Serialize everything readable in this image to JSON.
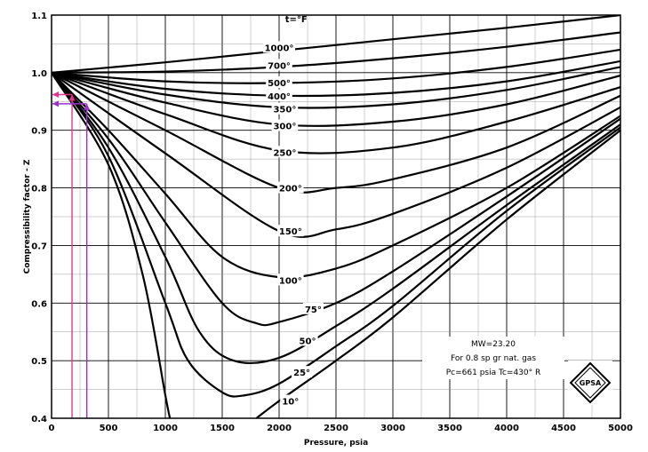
{
  "chart_data": {
    "type": "line",
    "title": "",
    "xlabel": "Pressure, psia",
    "ylabel": "Compressibility factor - Z",
    "xlim": [
      0,
      5000
    ],
    "ylim": [
      0.4,
      1.1
    ],
    "x_ticks": [
      0,
      500,
      1000,
      1500,
      2000,
      2500,
      3000,
      3500,
      4000,
      4500,
      5000
    ],
    "x_tick_labels": [
      "0",
      "500",
      "1000",
      "1500",
      "2000",
      "2500",
      "3000",
      "3500",
      "4000",
      "4500",
      "5000"
    ],
    "y_ticks": [
      0.4,
      0.5,
      0.6,
      0.7,
      0.8,
      0.9,
      1.0,
      1.1
    ],
    "y_tick_labels": [
      "0.4",
      "0.5",
      "0.6",
      "0.7",
      "0.8",
      "0.9",
      "1.0",
      "1.1"
    ],
    "grid": true,
    "temperature_unit_label": "t=°F",
    "series": [
      {
        "name": "1000°",
        "label_at": [
          2000,
          1.044
        ],
        "points": [
          [
            0,
            1.0
          ],
          [
            1000,
            1.018
          ],
          [
            2000,
            1.038
          ],
          [
            3000,
            1.058
          ],
          [
            4000,
            1.078
          ],
          [
            5000,
            1.1
          ]
        ]
      },
      {
        "name": "700°",
        "label_at": [
          2000,
          1.013
        ],
        "points": [
          [
            0,
            1.0
          ],
          [
            1000,
            1.002
          ],
          [
            2000,
            1.01
          ],
          [
            3000,
            1.025
          ],
          [
            4000,
            1.045
          ],
          [
            5000,
            1.07
          ]
        ]
      },
      {
        "name": "500°",
        "label_at": [
          2000,
          0.983
        ],
        "points": [
          [
            0,
            1.0
          ],
          [
            1000,
            0.985
          ],
          [
            2000,
            0.982
          ],
          [
            3000,
            0.99
          ],
          [
            4000,
            1.01
          ],
          [
            5000,
            1.04
          ]
        ]
      },
      {
        "name": "400°",
        "label_at": [
          2000,
          0.96
        ],
        "points": [
          [
            0,
            1.0
          ],
          [
            1000,
            0.972
          ],
          [
            2000,
            0.96
          ],
          [
            3000,
            0.965
          ],
          [
            4000,
            0.985
          ],
          [
            5000,
            1.02
          ]
        ]
      },
      {
        "name": "350°",
        "label_at": [
          2050,
          0.937
        ],
        "points": [
          [
            0,
            1.0
          ],
          [
            1000,
            0.962
          ],
          [
            2000,
            0.94
          ],
          [
            3000,
            0.945
          ],
          [
            4000,
            0.97
          ],
          [
            5000,
            1.01
          ]
        ]
      },
      {
        "name": "300°",
        "label_at": [
          2050,
          0.908
        ],
        "points": [
          [
            0,
            1.0
          ],
          [
            1000,
            0.948
          ],
          [
            2000,
            0.91
          ],
          [
            3000,
            0.915
          ],
          [
            4000,
            0.945
          ],
          [
            5000,
            0.995
          ]
        ]
      },
      {
        "name": "250°",
        "label_at": [
          2050,
          0.862
        ],
        "points": [
          [
            0,
            1.0
          ],
          [
            1000,
            0.928
          ],
          [
            2000,
            0.865
          ],
          [
            3000,
            0.87
          ],
          [
            4000,
            0.915
          ],
          [
            5000,
            0.975
          ]
        ]
      },
      {
        "name": "200°",
        "label_at": [
          2100,
          0.8
        ],
        "points": [
          [
            0,
            1.0
          ],
          [
            1000,
            0.9
          ],
          [
            2000,
            0.8
          ],
          [
            2500,
            0.8
          ],
          [
            3000,
            0.815
          ],
          [
            4000,
            0.87
          ],
          [
            5000,
            0.96
          ]
        ]
      },
      {
        "name": "150°",
        "label_at": [
          2100,
          0.725
        ],
        "points": [
          [
            0,
            1.0
          ],
          [
            1000,
            0.86
          ],
          [
            2000,
            0.725
          ],
          [
            2500,
            0.728
          ],
          [
            3000,
            0.755
          ],
          [
            4000,
            0.835
          ],
          [
            5000,
            0.94
          ]
        ]
      },
      {
        "name": "100°",
        "label_at": [
          2100,
          0.64
        ],
        "points": [
          [
            0,
            1.0
          ],
          [
            500,
            0.9
          ],
          [
            1000,
            0.79
          ],
          [
            1500,
            0.68
          ],
          [
            2000,
            0.645
          ],
          [
            2500,
            0.66
          ],
          [
            3000,
            0.7
          ],
          [
            4000,
            0.8
          ],
          [
            5000,
            0.925
          ]
        ]
      },
      {
        "name": "75°",
        "label_at": [
          2300,
          0.59
        ],
        "points": [
          [
            0,
            1.0
          ],
          [
            500,
            0.885
          ],
          [
            1000,
            0.74
          ],
          [
            1500,
            0.6
          ],
          [
            1800,
            0.565
          ],
          [
            2000,
            0.567
          ],
          [
            2500,
            0.6
          ],
          [
            3000,
            0.655
          ],
          [
            4000,
            0.785
          ],
          [
            5000,
            0.92
          ]
        ]
      },
      {
        "name": "50°",
        "label_at": [
          2250,
          0.535
        ],
        "points": [
          [
            0,
            1.0
          ],
          [
            500,
            0.87
          ],
          [
            1000,
            0.68
          ],
          [
            1300,
            0.55
          ],
          [
            1600,
            0.5
          ],
          [
            2000,
            0.505
          ],
          [
            2500,
            0.56
          ],
          [
            3000,
            0.625
          ],
          [
            4000,
            0.77
          ],
          [
            5000,
            0.91
          ]
        ]
      },
      {
        "name": "25°",
        "label_at": [
          2200,
          0.48
        ],
        "points": [
          [
            0,
            1.0
          ],
          [
            500,
            0.855
          ],
          [
            1000,
            0.6
          ],
          [
            1200,
            0.5
          ],
          [
            1500,
            0.445
          ],
          [
            1700,
            0.44
          ],
          [
            2000,
            0.46
          ],
          [
            2500,
            0.525
          ],
          [
            3000,
            0.595
          ],
          [
            4000,
            0.76
          ],
          [
            5000,
            0.905
          ]
        ]
      },
      {
        "name": "10°",
        "label_at": [
          2100,
          0.43
        ],
        "points": [
          [
            0,
            1.0
          ],
          [
            500,
            0.84
          ],
          [
            800,
            0.65
          ],
          [
            1000,
            0.44
          ],
          [
            1040,
            0.4
          ]
        ]
      },
      {
        "name": "",
        "points": [
          [
            1800,
            0.4
          ],
          [
            2000,
            0.43
          ],
          [
            2500,
            0.5
          ],
          [
            3000,
            0.575
          ],
          [
            4000,
            0.745
          ],
          [
            5000,
            0.9
          ]
        ]
      }
    ],
    "annotation_lines": [
      {
        "color": "#e8328c",
        "x": 180,
        "y": 0.962,
        "y_from": 0.4
      },
      {
        "color": "#9b30d0",
        "x": 310,
        "y": 0.946,
        "y_from": 0.4
      }
    ],
    "notes": {
      "mw": "MW=23.20",
      "gas": "For 0.8 sp gr nat. gas",
      "critical": "Pc=661 psia  Tc=430° R"
    },
    "logo_text": "GPSA"
  }
}
